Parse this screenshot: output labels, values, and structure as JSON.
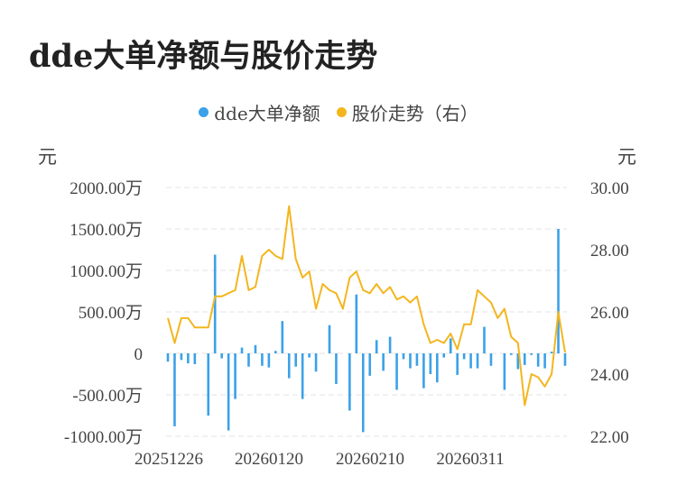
{
  "title": "dde大单净额与股价走势",
  "legend": {
    "bar_label": "dde大单净额",
    "line_label": "股价走势（右）"
  },
  "units": {
    "left": "元",
    "right": "元"
  },
  "colors": {
    "bar": "#3ba1e8",
    "line": "#f3b61f",
    "grid": "#e3e3e3"
  },
  "chart_data": {
    "type": "bar+line",
    "x_tick_labels": [
      "20251226",
      "20260120",
      "20260210",
      "20260311"
    ],
    "y_left_tick_labels": [
      "2000.00万",
      "1500.00万",
      "1000.00万",
      "500.00万",
      "0",
      "-500.00万",
      "-1000.00万"
    ],
    "y_right_tick_labels": [
      "30.00",
      "28.00",
      "26.00",
      "24.00",
      "22.00"
    ],
    "y_left_range": [
      -1000,
      2000
    ],
    "y_right_range": [
      22,
      30
    ],
    "series": [
      {
        "name": "dde大单净额",
        "axis": "left",
        "unit": "万",
        "values": [
          -100,
          -880,
          -80,
          -120,
          -130,
          0,
          -750,
          1190,
          -60,
          -930,
          -550,
          70,
          -160,
          100,
          -150,
          -170,
          30,
          390,
          -300,
          -160,
          -550,
          -50,
          -220,
          0,
          340,
          -370,
          0,
          -690,
          710,
          -950,
          -270,
          160,
          -210,
          200,
          -440,
          -70,
          -180,
          -150,
          -420,
          -250,
          -350,
          -50,
          180,
          -260,
          -70,
          -180,
          -180,
          320,
          -150,
          0,
          -440,
          -20,
          -190,
          -140,
          -20,
          -160,
          -180,
          20,
          1500,
          -150
        ]
      },
      {
        "name": "股价走势（右）",
        "axis": "right",
        "values": [
          25.8,
          25.0,
          25.8,
          25.8,
          25.5,
          25.5,
          25.5,
          26.5,
          26.5,
          26.6,
          26.7,
          27.8,
          26.7,
          26.8,
          27.8,
          28.0,
          27.8,
          27.7,
          29.4,
          27.7,
          27.1,
          27.3,
          26.1,
          26.9,
          26.7,
          26.6,
          26.1,
          27.1,
          27.3,
          26.7,
          26.6,
          26.9,
          26.6,
          26.8,
          26.4,
          26.5,
          26.3,
          26.5,
          25.6,
          25.0,
          25.1,
          25.0,
          25.3,
          24.8,
          25.6,
          25.6,
          26.7,
          26.5,
          26.3,
          25.8,
          26.1,
          25.2,
          25.0,
          23.0,
          24.0,
          23.9,
          23.6,
          24.0,
          26.0,
          24.7
        ]
      }
    ],
    "grid": true
  }
}
